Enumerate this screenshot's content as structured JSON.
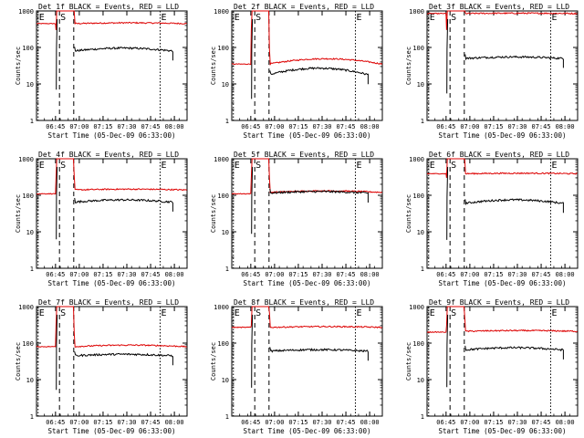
{
  "chart_data": {
    "type": "line",
    "common": {
      "xlabel": "Start Time (05-Dec-09 06:33:00)",
      "ylabel": "Counts/sec",
      "x_ticks": [
        "06:45",
        "07:00",
        "07:15",
        "07:30",
        "07:45",
        "08:00"
      ],
      "x_tick_minutes": [
        12,
        27,
        42,
        57,
        72,
        87
      ],
      "xlim_minutes": [
        0,
        95
      ],
      "y_scale": "log",
      "ylim": [
        1,
        1000
      ],
      "y_ticks": [
        "1",
        "10",
        "100",
        "1000"
      ],
      "y_tick_values": [
        1,
        10,
        100,
        1000
      ],
      "series_colors": {
        "events": "#000000",
        "lld": "#dd0000"
      },
      "markers": [
        {
          "label": "E",
          "minute": 1,
          "style": "dotted"
        },
        {
          "label": "S",
          "minute": 14.5,
          "style": "dashed"
        },
        {
          "label": "",
          "minute": 23.5,
          "style": "dashed"
        },
        {
          "label": "E",
          "minute": 78,
          "style": "dotted"
        }
      ]
    },
    "panels": [
      {
        "title": "Det 1f BLACK = Events, RED = LLD",
        "events": {
          "level": 80,
          "hump": 1.2
        },
        "lld": {
          "level": 450,
          "hump": 1.05
        },
        "pre_lld": 450
      },
      {
        "title": "Det 2f BLACK = Events, RED = LLD",
        "events": {
          "level": 18,
          "hump": 1.5
        },
        "lld": {
          "level": 35,
          "hump": 1.4
        },
        "pre_lld": 35
      },
      {
        "title": "Det 3f BLACK = Events, RED = LLD",
        "events": {
          "level": 50,
          "hump": 1.1
        },
        "lld": {
          "level": 850,
          "hump": 1.02
        },
        "pre_lld": 850
      },
      {
        "title": "Det 4f BLACK = Events, RED = LLD",
        "events": {
          "level": 65,
          "hump": 1.15
        },
        "lld": {
          "level": 140,
          "hump": 1.05
        },
        "pre_lld": 110
      },
      {
        "title": "Det 5f BLACK = Events, RED = LLD",
        "events": {
          "level": 115,
          "hump": 1.1
        },
        "lld": {
          "level": 120,
          "hump": 1.1
        },
        "pre_lld": 110
      },
      {
        "title": "Det 6f BLACK = Events, RED = LLD",
        "events": {
          "level": 60,
          "hump": 1.25
        },
        "lld": {
          "level": 390,
          "hump": 1.03
        },
        "pre_lld": 390
      },
      {
        "title": "Det 7f BLACK = Events, RED = LLD",
        "events": {
          "level": 45,
          "hump": 1.1
        },
        "lld": {
          "level": 80,
          "hump": 1.1
        },
        "pre_lld": 80
      },
      {
        "title": "Det 8f BLACK = Events, RED = LLD",
        "events": {
          "level": 60,
          "hump": 1.1
        },
        "lld": {
          "level": 270,
          "hump": 1.05
        },
        "pre_lld": 270
      },
      {
        "title": "Det 9f BLACK = Events, RED = LLD",
        "events": {
          "level": 65,
          "hump": 1.15
        },
        "lld": {
          "level": 210,
          "hump": 1.05
        },
        "pre_lld": 200
      }
    ]
  }
}
